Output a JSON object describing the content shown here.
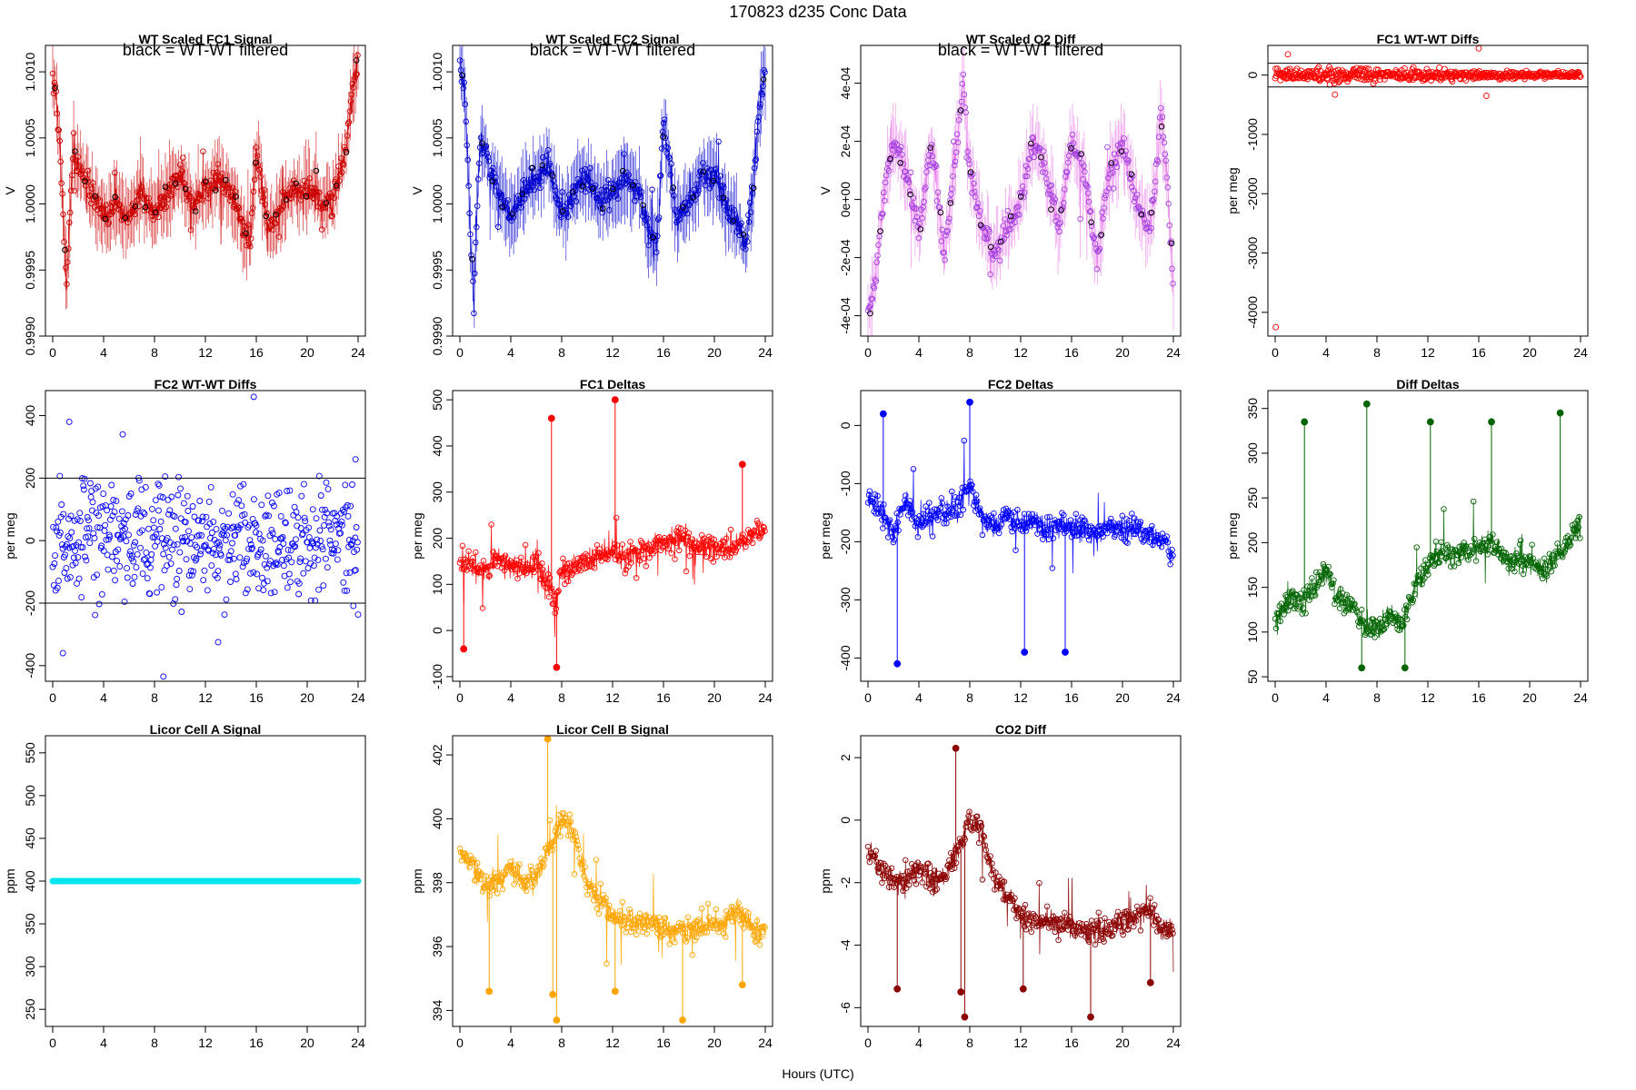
{
  "page": {
    "title": "170823   d235   Conc Data",
    "xlabel": "Hours (UTC)"
  },
  "chart_data": [
    {
      "id": "p1",
      "type": "line",
      "title": "WT Scaled FC1 Signal",
      "subtitle": "black = WT-WT filtered",
      "ylabel": "V",
      "color": "#cc0000",
      "highlight_color": "#000000",
      "xlim": [
        0,
        24
      ],
      "ylim": [
        0.999,
        1.0012
      ],
      "xticks": [
        0,
        4,
        8,
        12,
        16,
        20,
        24
      ],
      "yticks": [
        0.999,
        0.9995,
        1.0,
        1.0005,
        1.001
      ],
      "ytick_labels": [
        "0.9990",
        "0.9995",
        "1.0000",
        "1.0005",
        "1.0010"
      ],
      "x": [
        0,
        0.3,
        0.6,
        0.9,
        1.1,
        1.3,
        1.6,
        2,
        2.5,
        3,
        3.5,
        4,
        5,
        6,
        7,
        8,
        9,
        10,
        11,
        12,
        13,
        14,
        15,
        15.5,
        16,
        16.5,
        17,
        18,
        19,
        20,
        21,
        22,
        22.5,
        23,
        23.5,
        24
      ],
      "values": [
        1.0009,
        1.0008,
        1.0004,
        0.9997,
        0.9994,
        0.9998,
        1.0004,
        1.0003,
        1.0002,
        1.0001,
        1.0,
        0.9999,
        1.0,
        0.9999,
        1.0001,
        0.9999,
        1.0001,
        1.0002,
        1.0,
        1.0001,
        1.0002,
        1.0001,
        0.9998,
        0.9997,
        1.0004,
        1.0001,
        0.9998,
        1.0,
        1.0001,
        1.0001,
        1.0,
        1.0,
        1.0002,
        1.0004,
        1.0008,
        1.0011
      ]
    },
    {
      "id": "p2",
      "type": "line",
      "title": "WT Scaled FC2 Signal",
      "subtitle": "black = WT-WT filtered",
      "ylabel": "V",
      "color": "#0000cc",
      "highlight_color": "#000000",
      "xlim": [
        0,
        24
      ],
      "ylim": [
        0.999,
        1.0012
      ],
      "xticks": [
        0,
        4,
        8,
        12,
        16,
        20,
        24
      ],
      "yticks": [
        0.999,
        0.9995,
        1.0,
        1.0005,
        1.001
      ],
      "ytick_labels": [
        "0.9990",
        "0.9995",
        "1.0000",
        "1.0005",
        "1.0010"
      ],
      "x": [
        0,
        0.3,
        0.6,
        0.9,
        1.1,
        1.3,
        1.6,
        2,
        2.5,
        3,
        3.5,
        4,
        5,
        6,
        7,
        8,
        9,
        10,
        11,
        12,
        13,
        14,
        15,
        15.5,
        16,
        16.5,
        17,
        18,
        19,
        20,
        21,
        22,
        22.5,
        23,
        23.5,
        24
      ],
      "values": [
        1.0011,
        1.0009,
        1.0004,
        0.9996,
        0.9992,
        0.9999,
        1.0005,
        1.0004,
        1.0002,
        1.0001,
        1.0,
        0.9999,
        1.0001,
        1.0002,
        1.0003,
        0.9999,
        1.0001,
        1.0002,
        1.0,
        1.0001,
        1.0002,
        1.0001,
        0.9998,
        0.9997,
        1.0006,
        1.0003,
        0.9999,
        1.0,
        1.0002,
        1.0002,
        1.0,
        0.9998,
        0.9997,
        1.0001,
        1.0007,
        1.001
      ]
    },
    {
      "id": "p3",
      "type": "line",
      "title": "WT Scaled O2 Diff",
      "subtitle": "black = WT-WT filtered",
      "ylabel": "V",
      "color": "#e87ee8",
      "marker_color": "#a040e0",
      "highlight_color": "#000000",
      "xlim": [
        0,
        24
      ],
      "ylim": [
        -0.00047,
        0.00053
      ],
      "xticks": [
        0,
        4,
        8,
        12,
        16,
        20,
        24
      ],
      "yticks": [
        -0.0004,
        -0.0002,
        0,
        0.0002,
        0.0004
      ],
      "ytick_labels": [
        "-4e-04",
        "-2e-04",
        "0e+00",
        "2e-04",
        "4e-04"
      ],
      "x": [
        0,
        0.5,
        1,
        1.5,
        2,
        3,
        4,
        5,
        6,
        7,
        7.5,
        8,
        9,
        10,
        11,
        12,
        13,
        14,
        15,
        16,
        17,
        18,
        19,
        20,
        21,
        22,
        22.5,
        23,
        23.5,
        24
      ],
      "values": [
        -0.0004,
        -0.0003,
        -0.0001,
        0.0001,
        0.0002,
        0.0001,
        -0.0001,
        0.0002,
        -0.0002,
        0.0002,
        0.0004,
        0.0001,
        -0.0001,
        -0.0002,
        -0.0001,
        0.0,
        0.0002,
        0.0001,
        -0.0001,
        0.0002,
        0.0001,
        -0.0002,
        0.0001,
        0.0002,
        0.0,
        -0.0001,
        0.0,
        0.0003,
        0.0001,
        -0.0003
      ]
    },
    {
      "id": "p4",
      "type": "scatter",
      "title": "FC1 WT-WT Diffs",
      "ylabel": "per meg",
      "color": "#ff0000",
      "xlim": [
        0,
        24
      ],
      "ylim": [
        -4400,
        500
      ],
      "xticks": [
        0,
        4,
        8,
        12,
        16,
        20,
        24
      ],
      "yticks": [
        -4000,
        -3000,
        -2000,
        -1000,
        0
      ],
      "ytick_labels": [
        "-4000",
        "-3000",
        "-2000",
        "-1000",
        "0"
      ],
      "hlines": [
        200,
        -200
      ],
      "outliers": [
        {
          "x": 0.05,
          "y": -4250
        },
        {
          "x": 16,
          "y": 450
        },
        {
          "x": 1,
          "y": 350
        },
        {
          "x": 4.7,
          "y": -330
        },
        {
          "x": 16.6,
          "y": -350
        }
      ],
      "noise_range": [
        -180,
        180
      ]
    },
    {
      "id": "p5",
      "type": "scatter",
      "title": "FC2 WT-WT Diffs",
      "ylabel": "per meg",
      "color": "#0000ff",
      "xlim": [
        0,
        24
      ],
      "ylim": [
        -450,
        480
      ],
      "xticks": [
        0,
        4,
        8,
        12,
        16,
        20,
        24
      ],
      "yticks": [
        -400,
        -200,
        0,
        200,
        400
      ],
      "ytick_labels": [
        "-400",
        "-200",
        "0",
        "200",
        "400"
      ],
      "hlines": [
        200,
        -200
      ],
      "outliers": [
        {
          "x": 15.8,
          "y": 460
        },
        {
          "x": 8.7,
          "y": -435
        },
        {
          "x": 1.3,
          "y": 380
        },
        {
          "x": 0.8,
          "y": -360
        },
        {
          "x": 5.5,
          "y": 340
        },
        {
          "x": 13,
          "y": -325
        },
        {
          "x": 23.8,
          "y": 260
        }
      ],
      "noise_range": [
        -250,
        250
      ]
    },
    {
      "id": "p6",
      "type": "line",
      "title": "FC1 Deltas",
      "ylabel": "per meg",
      "color": "#ff0000",
      "xlim": [
        0,
        24
      ],
      "ylim": [
        -110,
        520
      ],
      "xticks": [
        0,
        4,
        8,
        12,
        16,
        20,
        24
      ],
      "yticks": [
        -100,
        0,
        100,
        200,
        300,
        400,
        500
      ],
      "ytick_labels": [
        "-100",
        "0",
        "100",
        "200",
        "300",
        "400",
        "500"
      ],
      "x": [
        0,
        1,
        2,
        3,
        4,
        5,
        6,
        7,
        7.5,
        8,
        9,
        10,
        11,
        12,
        13,
        14,
        15,
        16,
        17,
        18,
        19,
        20,
        21,
        22,
        23,
        24
      ],
      "values": [
        150,
        140,
        130,
        160,
        140,
        130,
        150,
        100,
        60,
        120,
        140,
        150,
        160,
        170,
        160,
        170,
        180,
        190,
        200,
        190,
        180,
        175,
        180,
        185,
        210,
        220
      ],
      "spikes": [
        {
          "x": 7.2,
          "y": 460
        },
        {
          "x": 12.2,
          "y": 500
        },
        {
          "x": 7.6,
          "y": -80
        },
        {
          "x": 0.3,
          "y": -40
        },
        {
          "x": 22.2,
          "y": 360
        }
      ]
    },
    {
      "id": "p7",
      "type": "line",
      "title": "FC2 Deltas",
      "ylabel": "per meg",
      "color": "#0000ff",
      "xlim": [
        0,
        24
      ],
      "ylim": [
        -440,
        60
      ],
      "xticks": [
        0,
        4,
        8,
        12,
        16,
        20,
        24
      ],
      "yticks": [
        -400,
        -300,
        -200,
        -100,
        0
      ],
      "ytick_labels": [
        "-400",
        "-300",
        "-200",
        "-100",
        "0"
      ],
      "x": [
        0,
        1,
        2,
        3,
        4,
        5,
        6,
        7,
        8,
        9,
        10,
        11,
        12,
        13,
        14,
        15,
        16,
        17,
        18,
        19,
        20,
        21,
        22,
        23,
        24
      ],
      "values": [
        -120,
        -150,
        -180,
        -130,
        -170,
        -160,
        -150,
        -140,
        -100,
        -160,
        -170,
        -150,
        -170,
        -160,
        -180,
        -170,
        -175,
        -180,
        -185,
        -170,
        -180,
        -175,
        -190,
        -200,
        -220
      ],
      "spikes": [
        {
          "x": 2.3,
          "y": -410
        },
        {
          "x": 8,
          "y": 40
        },
        {
          "x": 1.2,
          "y": 20
        },
        {
          "x": 15.5,
          "y": -390
        },
        {
          "x": 12.3,
          "y": -390
        }
      ]
    },
    {
      "id": "p8",
      "type": "line",
      "title": "Diff Deltas",
      "ylabel": "per meg",
      "color": "#006400",
      "xlim": [
        0,
        24
      ],
      "ylim": [
        45,
        370
      ],
      "xticks": [
        0,
        4,
        8,
        12,
        16,
        20,
        24
      ],
      "yticks": [
        50,
        100,
        150,
        200,
        250,
        300,
        350
      ],
      "ytick_labels": [
        "50",
        "100",
        "150",
        "200",
        "250",
        "300",
        "350"
      ],
      "x": [
        0,
        1,
        2,
        3,
        4,
        5,
        6,
        7,
        8,
        9,
        10,
        11,
        12,
        13,
        14,
        15,
        16,
        17,
        18,
        19,
        20,
        21,
        22,
        23,
        24
      ],
      "values": [
        110,
        140,
        130,
        150,
        170,
        140,
        130,
        110,
        100,
        120,
        110,
        150,
        170,
        190,
        185,
        190,
        195,
        200,
        185,
        180,
        175,
        170,
        180,
        200,
        220
      ],
      "spikes": [
        {
          "x": 2.3,
          "y": 335
        },
        {
          "x": 7.2,
          "y": 355
        },
        {
          "x": 12.2,
          "y": 335
        },
        {
          "x": 17,
          "y": 335
        },
        {
          "x": 22.4,
          "y": 345
        },
        {
          "x": 6.8,
          "y": 60
        },
        {
          "x": 10.2,
          "y": 60
        }
      ]
    },
    {
      "id": "p9",
      "type": "line",
      "title": "Licor Cell A Signal",
      "ylabel": "ppm",
      "color": "#00e5ee",
      "xlim": [
        0,
        24
      ],
      "ylim": [
        230,
        570
      ],
      "xticks": [
        0,
        4,
        8,
        12,
        16,
        20,
        24
      ],
      "yticks": [
        250,
        300,
        350,
        400,
        450,
        500,
        550
      ],
      "ytick_labels": [
        "250",
        "300",
        "350",
        "400",
        "450",
        "500",
        "550"
      ],
      "x": [
        0,
        24
      ],
      "values": [
        400,
        400
      ],
      "linewidth": "thick"
    },
    {
      "id": "p10",
      "type": "line",
      "title": "Licor Cell B Signal",
      "ylabel": "ppm",
      "color": "#ffa500",
      "xlim": [
        0,
        24
      ],
      "ylim": [
        393.5,
        402.6
      ],
      "xticks": [
        0,
        4,
        8,
        12,
        16,
        20,
        24
      ],
      "yticks": [
        394,
        396,
        398,
        400,
        402
      ],
      "ytick_labels": [
        "394",
        "396",
        "398",
        "400",
        "402"
      ],
      "x": [
        0,
        1,
        2,
        3,
        4,
        5,
        6,
        7,
        8,
        9,
        10,
        11,
        12,
        13,
        14,
        15,
        16,
        17,
        18,
        19,
        20,
        21,
        22,
        23,
        24
      ],
      "values": [
        399,
        398.5,
        398,
        398,
        398.5,
        398,
        398.2,
        399,
        400,
        399.5,
        398,
        397.5,
        397,
        396.8,
        396.8,
        396.7,
        396.6,
        396.5,
        396.5,
        396.6,
        396.7,
        396.8,
        397.2,
        396.5,
        396.5
      ],
      "spikes": [
        {
          "x": 2.3,
          "y": 394.6
        },
        {
          "x": 7.3,
          "y": 394.5
        },
        {
          "x": 7.6,
          "y": 393.7
        },
        {
          "x": 12.2,
          "y": 394.6
        },
        {
          "x": 17.5,
          "y": 393.7
        },
        {
          "x": 22.2,
          "y": 394.8
        },
        {
          "x": 6.9,
          "y": 402.5
        }
      ]
    },
    {
      "id": "p11",
      "type": "line",
      "title": "CO2 Diff",
      "ylabel": "ppm",
      "color": "#8b0000",
      "xlim": [
        0,
        24
      ],
      "ylim": [
        -6.6,
        2.7
      ],
      "xticks": [
        0,
        4,
        8,
        12,
        16,
        20,
        24
      ],
      "yticks": [
        -6,
        -4,
        -2,
        0,
        2
      ],
      "ytick_labels": [
        "-6",
        "-4",
        "-2",
        "0",
        "2"
      ],
      "x": [
        0,
        1,
        2,
        3,
        4,
        5,
        6,
        7,
        8,
        9,
        10,
        11,
        12,
        13,
        14,
        15,
        16,
        17,
        18,
        19,
        20,
        21,
        22,
        23,
        24
      ],
      "values": [
        -1,
        -1.5,
        -2,
        -2,
        -1.5,
        -2,
        -1.8,
        -1,
        0,
        -0.5,
        -2,
        -2.5,
        -3,
        -3.2,
        -3.2,
        -3.3,
        -3.4,
        -3.5,
        -3.5,
        -3.4,
        -3.3,
        -3.2,
        -2.8,
        -3.5,
        -3.5
      ],
      "spikes": [
        {
          "x": 2.3,
          "y": -5.4
        },
        {
          "x": 7.3,
          "y": -5.5
        },
        {
          "x": 7.6,
          "y": -6.3
        },
        {
          "x": 12.2,
          "y": -5.4
        },
        {
          "x": 17.5,
          "y": -6.3
        },
        {
          "x": 22.2,
          "y": -5.2
        },
        {
          "x": 6.9,
          "y": 2.3
        }
      ]
    }
  ]
}
